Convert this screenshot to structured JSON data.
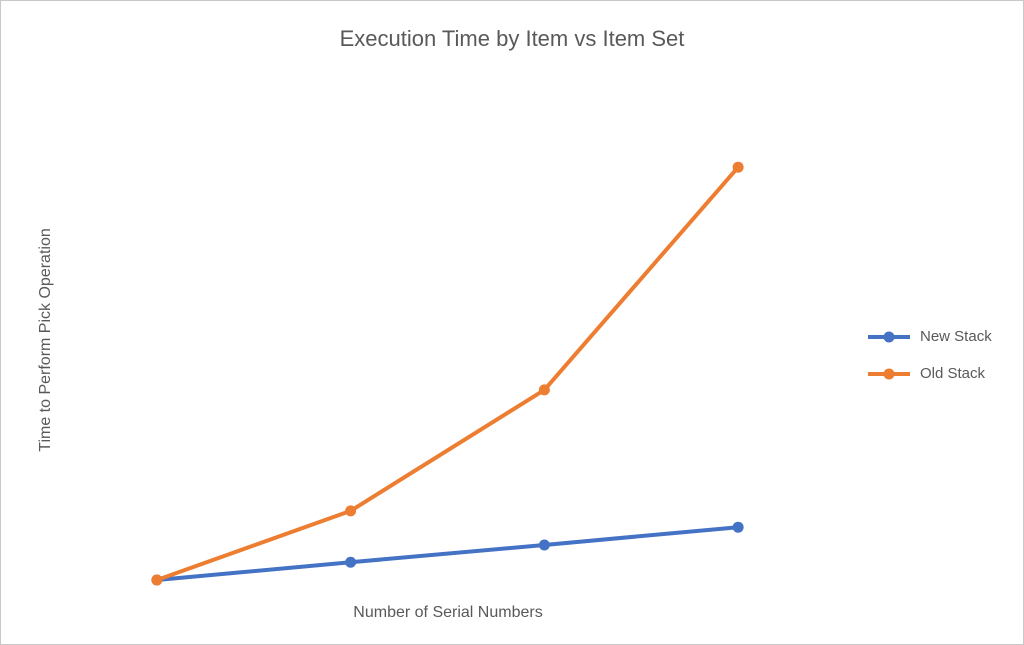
{
  "chart_data": {
    "type": "line",
    "title": "Execution Time by Item vs Item Set",
    "x_label": "Number of Serial Numbers",
    "y_label": "Time to Perform Pick Operation",
    "categories": [
      null,
      null,
      null,
      null
    ],
    "series": [
      {
        "name": "New Stack",
        "color": "#4472c4",
        "values": [
          0,
          3.7,
          7.3,
          11
        ]
      },
      {
        "name": "Old Stack",
        "color": "#ed7d31",
        "values": [
          0,
          14.4,
          39.6,
          86
        ]
      }
    ],
    "ylim": [
      0,
      100
    ],
    "legend": "right"
  }
}
